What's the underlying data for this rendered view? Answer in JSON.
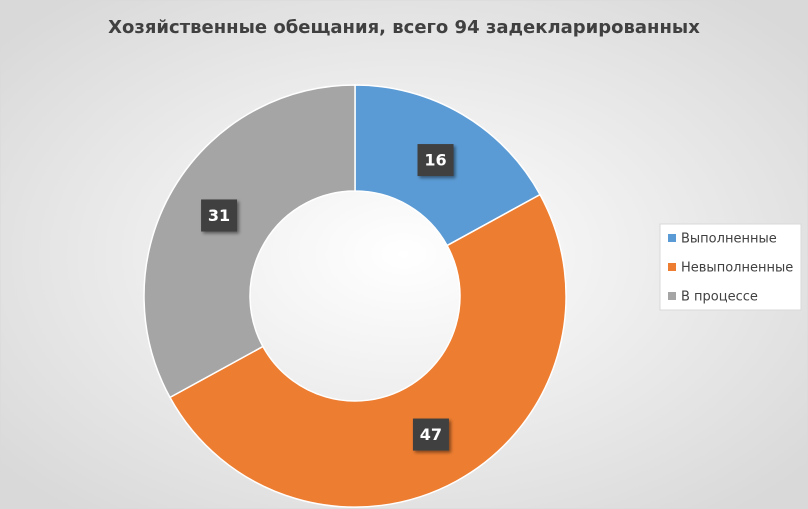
{
  "chart_data": {
    "type": "doughnut",
    "title": "Хозяйственные обещания, всего 94 задекларированных",
    "categories": [
      "Выполненные",
      "Невыполненные",
      "В процессе"
    ],
    "values": [
      16,
      47,
      31
    ],
    "colors": [
      "#5b9bd5",
      "#ed7d31",
      "#a5a5a5"
    ],
    "legend": "right"
  }
}
